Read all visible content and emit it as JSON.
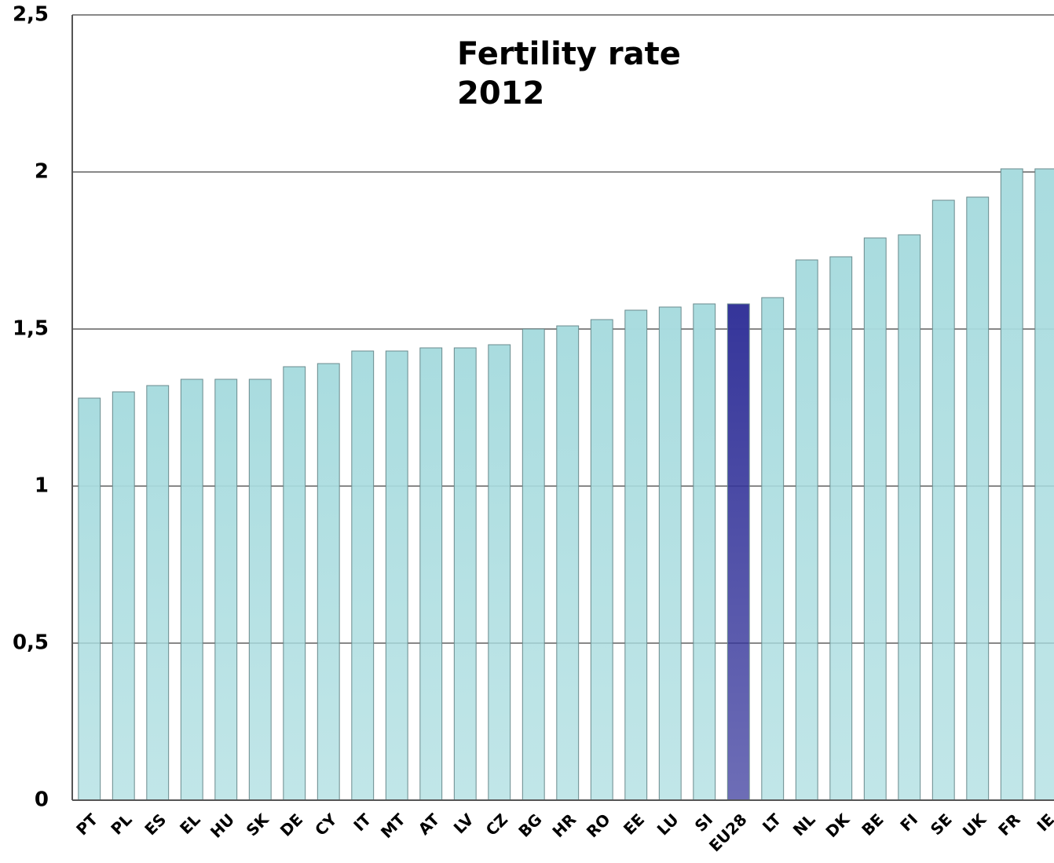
{
  "chart_data": {
    "type": "bar",
    "title_lines": [
      "Fertility rate",
      "2012"
    ],
    "categories": [
      "PT",
      "PL",
      "ES",
      "EL",
      "HU",
      "SK",
      "DE",
      "CY",
      "IT",
      "MT",
      "AT",
      "LV",
      "CZ",
      "BG",
      "HR",
      "RO",
      "EE",
      "LU",
      "SI",
      "EU28",
      "LT",
      "NL",
      "DK",
      "BE",
      "FI",
      "SE",
      "UK",
      "FR",
      "IE"
    ],
    "values": [
      1.28,
      1.3,
      1.32,
      1.34,
      1.34,
      1.34,
      1.38,
      1.39,
      1.43,
      1.43,
      1.44,
      1.44,
      1.45,
      1.5,
      1.51,
      1.53,
      1.56,
      1.57,
      1.58,
      1.58,
      1.6,
      1.72,
      1.73,
      1.79,
      1.8,
      1.91,
      1.92,
      2.01,
      2.01
    ],
    "colors": [
      "#a9dcdf",
      "#a9dcdf",
      "#a9dcdf",
      "#a9dcdf",
      "#a9dcdf",
      "#a9dcdf",
      "#a9dcdf",
      "#a9dcdf",
      "#a9dcdf",
      "#a9dcdf",
      "#a9dcdf",
      "#a9dcdf",
      "#a9dcdf",
      "#a9dcdf",
      "#a9dcdf",
      "#a9dcdf",
      "#a9dcdf",
      "#a9dcdf",
      "#a9dcdf",
      "#35359a",
      "#a9dcdf",
      "#a9dcdf",
      "#a9dcdf",
      "#a9dcdf",
      "#a9dcdf",
      "#a9dcdf",
      "#a9dcdf",
      "#a9dcdf",
      "#a9dcdf"
    ],
    "ylim": [
      0,
      2.5
    ],
    "yticks": [
      0,
      {
        "value": 0.5,
        "label": "0,5"
      },
      1,
      {
        "value": 1.5,
        "label": "1,5"
      },
      2,
      {
        "value": 2.5,
        "label": "2,5"
      }
    ],
    "grid": true
  }
}
